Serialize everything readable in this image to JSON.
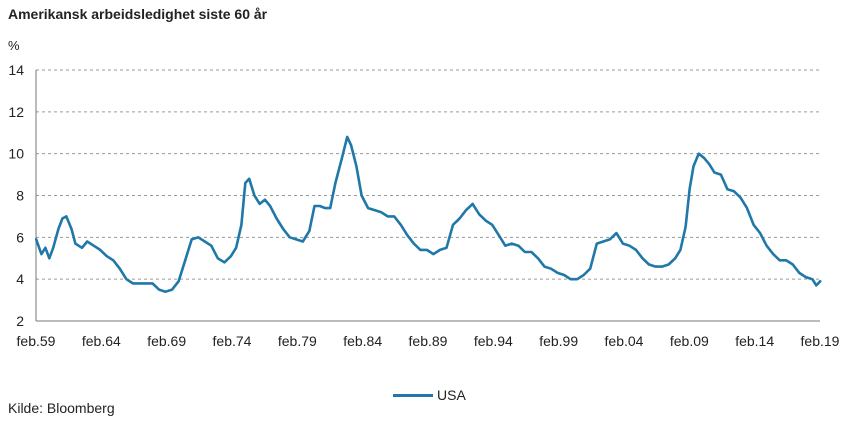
{
  "chart_data": {
    "type": "line",
    "title": "Amerikansk arbeidsledighet siste 60 år",
    "ylabel": "%",
    "xlabel": "",
    "ylim": [
      2,
      14
    ],
    "yticks": [
      2,
      4,
      6,
      8,
      10,
      12,
      14
    ],
    "xlim": [
      1959.083,
      2019.083
    ],
    "xticks": [
      {
        "value": 1959.083,
        "label": "feb.59"
      },
      {
        "value": 1964.083,
        "label": "feb.64"
      },
      {
        "value": 1969.083,
        "label": "feb.69"
      },
      {
        "value": 1974.083,
        "label": "feb.74"
      },
      {
        "value": 1979.083,
        "label": "feb.79"
      },
      {
        "value": 1984.083,
        "label": "feb.84"
      },
      {
        "value": 1989.083,
        "label": "feb.89"
      },
      {
        "value": 1994.083,
        "label": "feb.94"
      },
      {
        "value": 1999.083,
        "label": "feb.99"
      },
      {
        "value": 2004.083,
        "label": "feb.04"
      },
      {
        "value": 2009.083,
        "label": "feb.09"
      },
      {
        "value": 2014.083,
        "label": "feb.14"
      },
      {
        "value": 2019.083,
        "label": "feb.19"
      }
    ],
    "grid": "horizontal dashed",
    "legend_position": "bottom-center",
    "series": [
      {
        "name": "USA",
        "color": "#1f78a8",
        "x": [
          1959.1,
          1959.5,
          1959.8,
          1960.1,
          1960.4,
          1960.8,
          1961.1,
          1961.4,
          1961.8,
          1962.1,
          1962.6,
          1963.0,
          1963.5,
          1964.0,
          1964.5,
          1965.0,
          1965.5,
          1966.0,
          1966.5,
          1967.0,
          1967.5,
          1968.0,
          1968.5,
          1969.0,
          1969.5,
          1970.0,
          1970.5,
          1971.0,
          1971.5,
          1972.0,
          1972.5,
          1973.0,
          1973.5,
          1974.0,
          1974.4,
          1974.8,
          1975.1,
          1975.4,
          1975.8,
          1976.2,
          1976.6,
          1977.0,
          1977.5,
          1978.0,
          1978.5,
          1979.0,
          1979.5,
          1980.0,
          1980.4,
          1980.8,
          1981.2,
          1981.6,
          1982.0,
          1982.5,
          1982.9,
          1983.2,
          1983.6,
          1984.0,
          1984.5,
          1985.0,
          1985.5,
          1986.0,
          1986.5,
          1987.0,
          1987.5,
          1988.0,
          1988.5,
          1989.0,
          1989.5,
          1990.0,
          1990.5,
          1991.0,
          1991.5,
          1992.0,
          1992.5,
          1993.0,
          1993.5,
          1994.0,
          1994.5,
          1995.0,
          1995.5,
          1996.0,
          1996.5,
          1997.0,
          1997.5,
          1998.0,
          1998.5,
          1999.0,
          1999.5,
          2000.0,
          2000.5,
          2001.0,
          2001.5,
          2002.0,
          2002.5,
          2003.0,
          2003.5,
          2004.0,
          2004.5,
          2005.0,
          2005.5,
          2006.0,
          2006.5,
          2007.0,
          2007.5,
          2008.0,
          2008.4,
          2008.8,
          2009.1,
          2009.4,
          2009.8,
          2010.2,
          2010.6,
          2011.0,
          2011.5,
          2012.0,
          2012.5,
          2013.0,
          2013.5,
          2014.0,
          2014.5,
          2015.0,
          2015.5,
          2016.0,
          2016.5,
          2017.0,
          2017.5,
          2018.0,
          2018.5,
          2018.8,
          2019.1
        ],
        "values": [
          5.9,
          5.2,
          5.5,
          5.0,
          5.5,
          6.4,
          6.9,
          7.0,
          6.4,
          5.7,
          5.5,
          5.8,
          5.6,
          5.4,
          5.1,
          4.9,
          4.5,
          4.0,
          3.8,
          3.8,
          3.8,
          3.8,
          3.5,
          3.4,
          3.5,
          3.9,
          4.9,
          5.9,
          6.0,
          5.8,
          5.6,
          5.0,
          4.8,
          5.1,
          5.5,
          6.6,
          8.6,
          8.8,
          8.0,
          7.6,
          7.8,
          7.5,
          6.9,
          6.4,
          6.0,
          5.9,
          5.8,
          6.3,
          7.5,
          7.5,
          7.4,
          7.4,
          8.6,
          9.8,
          10.8,
          10.4,
          9.4,
          8.0,
          7.4,
          7.3,
          7.2,
          7.0,
          7.0,
          6.6,
          6.1,
          5.7,
          5.4,
          5.4,
          5.2,
          5.4,
          5.5,
          6.6,
          6.9,
          7.3,
          7.6,
          7.1,
          6.8,
          6.6,
          6.1,
          5.6,
          5.7,
          5.6,
          5.3,
          5.3,
          5.0,
          4.6,
          4.5,
          4.3,
          4.2,
          4.0,
          4.0,
          4.2,
          4.5,
          5.7,
          5.8,
          5.9,
          6.2,
          5.7,
          5.6,
          5.4,
          5.0,
          4.7,
          4.6,
          4.6,
          4.7,
          5.0,
          5.4,
          6.5,
          8.3,
          9.4,
          10.0,
          9.8,
          9.5,
          9.1,
          9.0,
          8.3,
          8.2,
          7.9,
          7.4,
          6.6,
          6.2,
          5.6,
          5.2,
          4.9,
          4.9,
          4.7,
          4.3,
          4.1,
          4.0,
          3.7,
          3.9
        ]
      }
    ]
  },
  "source": "Kilde: Bloomberg"
}
